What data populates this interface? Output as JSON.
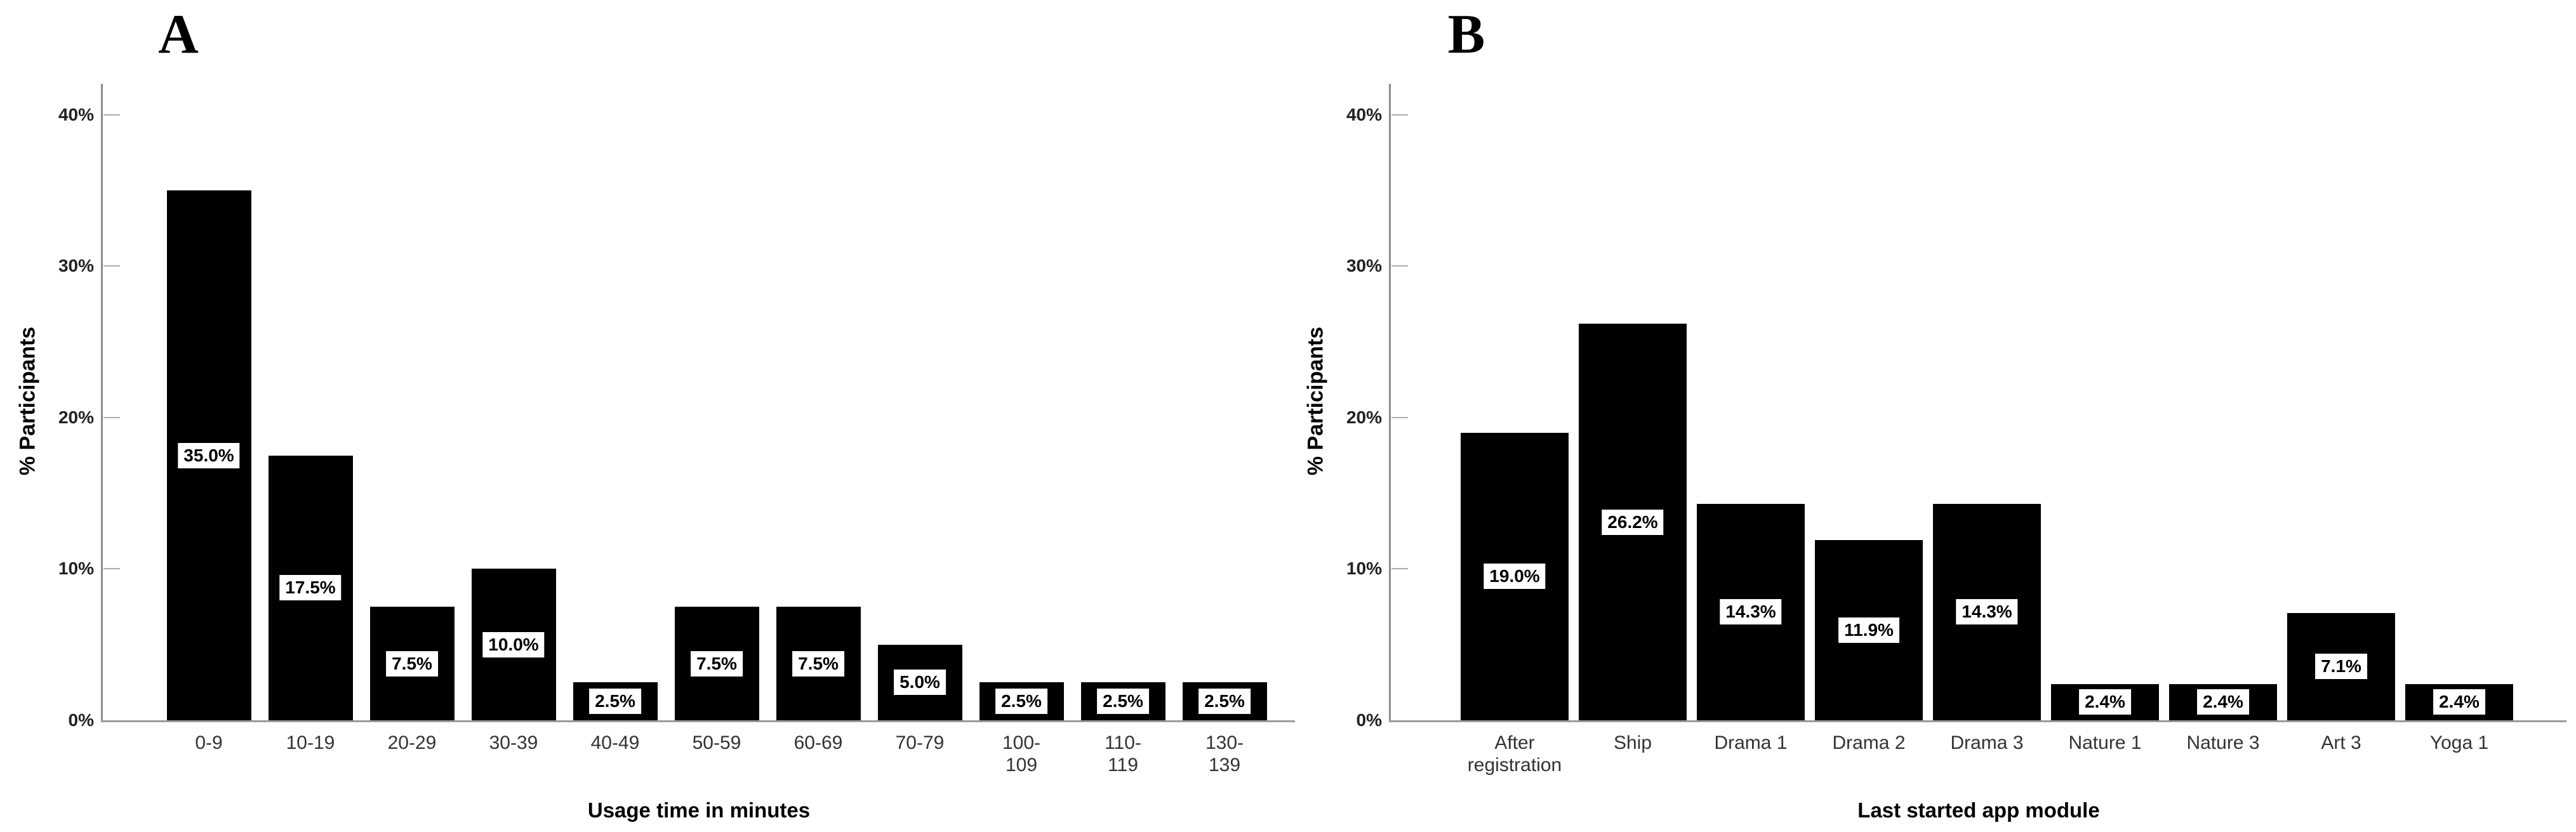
{
  "figure": {
    "background": "#ffffff",
    "description": "Two-panel black bar chart figure"
  },
  "colors": {
    "bar": "#000000",
    "axis_line": "#8c8c8c",
    "tick_mark": "#ababab",
    "tick_text": "#222222",
    "category_text": "#333333",
    "value_label_bg": "#ffffff",
    "value_label_text": "#000000"
  },
  "chart_data": [
    {
      "type": "bar",
      "panel_label": "A",
      "title": "",
      "xlabel": "Usage time in minutes",
      "ylabel": "% Participants",
      "ylim": [
        0,
        41.8
      ],
      "grid": false,
      "legend": null,
      "bar_color": "#000000",
      "y_ticks": [
        {
          "value": 0,
          "label": "0%"
        },
        {
          "value": 10,
          "label": "10%"
        },
        {
          "value": 20,
          "label": "20%"
        },
        {
          "value": 30,
          "label": "30%"
        },
        {
          "value": 40,
          "label": "40%"
        }
      ],
      "categories": [
        "0-9",
        "10-19",
        "20-29",
        "30-39",
        "40-49",
        "50-59",
        "60-69",
        "70-79",
        "100-109",
        "110-119",
        "130-139"
      ],
      "categories_display": [
        "0-9",
        "10-19",
        "20-29",
        "30-39",
        "40-49",
        "50-59",
        "60-69",
        "70-79",
        "100-\n109",
        "110-\n119",
        "130-\n139"
      ],
      "values": [
        35.0,
        17.5,
        7.5,
        10.0,
        2.5,
        7.5,
        7.5,
        5.0,
        2.5,
        2.5,
        2.5
      ],
      "value_labels": [
        "35.0%",
        "17.5%",
        "7.5%",
        "10.0%",
        "2.5%",
        "7.5%",
        "7.5%",
        "5.0%",
        "2.5%",
        "2.5%",
        "2.5%"
      ]
    },
    {
      "type": "bar",
      "panel_label": "B",
      "title": "",
      "xlabel": "Last started app module",
      "ylabel": "% Participants",
      "ylim": [
        0,
        41.8
      ],
      "grid": false,
      "legend": null,
      "bar_color": "#000000",
      "y_ticks": [
        {
          "value": 0,
          "label": "0%"
        },
        {
          "value": 10,
          "label": "10%"
        },
        {
          "value": 20,
          "label": "20%"
        },
        {
          "value": 30,
          "label": "30%"
        },
        {
          "value": 40,
          "label": "40%"
        }
      ],
      "categories": [
        "After registration",
        "Ship",
        "Drama 1",
        "Drama 2",
        "Drama 3",
        "Nature 1",
        "Nature 3",
        "Art 3",
        "Yoga 1"
      ],
      "categories_display": [
        "After\nregistration",
        "Ship",
        "Drama 1",
        "Drama 2",
        "Drama 3",
        "Nature 1",
        "Nature 3",
        "Art 3",
        "Yoga 1"
      ],
      "values": [
        19.0,
        26.2,
        14.3,
        11.9,
        14.3,
        2.4,
        2.4,
        7.1,
        2.4
      ],
      "value_labels": [
        "19.0%",
        "26.2%",
        "14.3%",
        "11.9%",
        "14.3%",
        "2.4%",
        "2.4%",
        "7.1%",
        "2.4%"
      ]
    }
  ]
}
